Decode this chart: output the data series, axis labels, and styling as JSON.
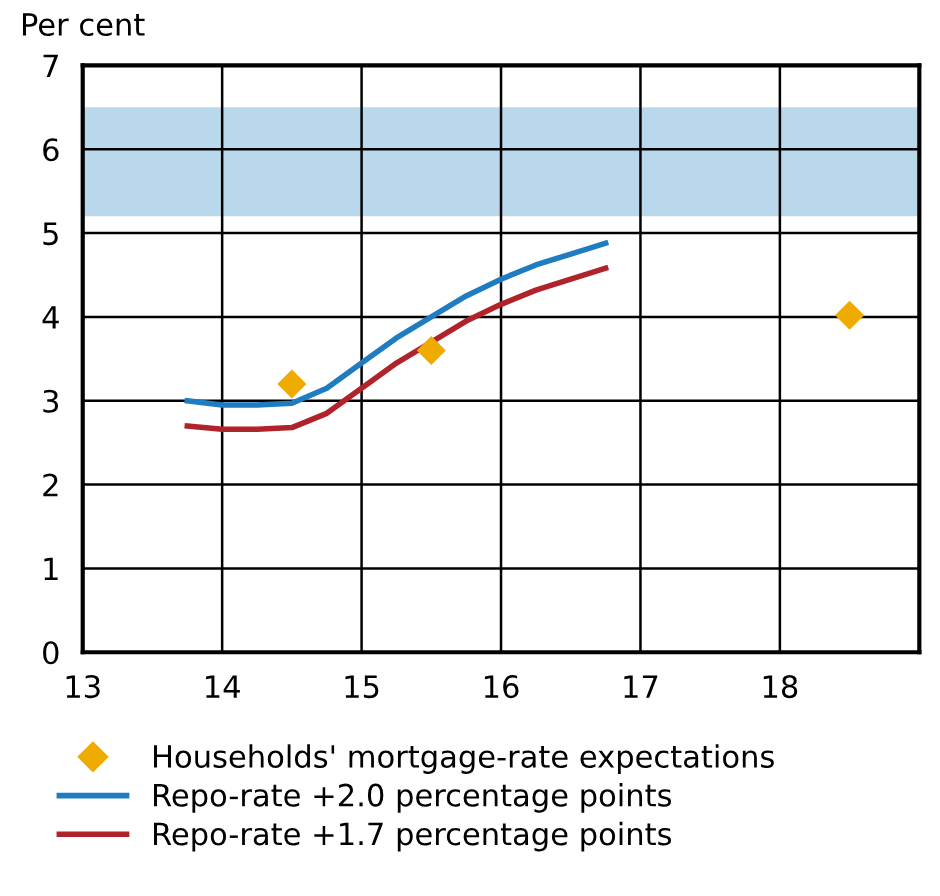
{
  "chart_data": {
    "type": "line",
    "ylabel": "Per cent",
    "xlim": [
      13,
      19
    ],
    "xticks": [
      13,
      14,
      15,
      16,
      17,
      18
    ],
    "ylim": [
      0,
      7
    ],
    "yticks": [
      0,
      1,
      2,
      3,
      4,
      5,
      6,
      7
    ],
    "grid": true,
    "legend": "bottom",
    "bands": [
      {
        "axis": "y",
        "from": 5.2,
        "to": 6.5,
        "color": "#bad8ec"
      }
    ],
    "series": [
      {
        "name": "Households' mortgage-rate expectations",
        "type": "scatter",
        "marker": "diamond",
        "color": "#f0ab00",
        "x": [
          14.5,
          15.5,
          18.5
        ],
        "values": [
          3.2,
          3.6,
          4.02
        ]
      },
      {
        "name": "Repo-rate +2.0 percentage points",
        "color": "#1f7cc1",
        "x": [
          13.75,
          14,
          14.25,
          14.5,
          14.75,
          15,
          15.25,
          15.5,
          15.75,
          16,
          16.25,
          16.5,
          16.75
        ],
        "values": [
          3.0,
          2.95,
          2.95,
          2.97,
          3.15,
          3.45,
          3.75,
          4.0,
          4.25,
          4.45,
          4.62,
          4.75,
          4.88
        ]
      },
      {
        "name": "Repo-rate +1.7 percentage points",
        "color": "#b0232a",
        "x": [
          13.75,
          14,
          14.25,
          14.5,
          14.75,
          15,
          15.25,
          15.5,
          15.75,
          16,
          16.25,
          16.5,
          16.75
        ],
        "values": [
          2.7,
          2.66,
          2.66,
          2.68,
          2.85,
          3.15,
          3.45,
          3.7,
          3.95,
          4.15,
          4.32,
          4.45,
          4.58
        ]
      }
    ]
  }
}
